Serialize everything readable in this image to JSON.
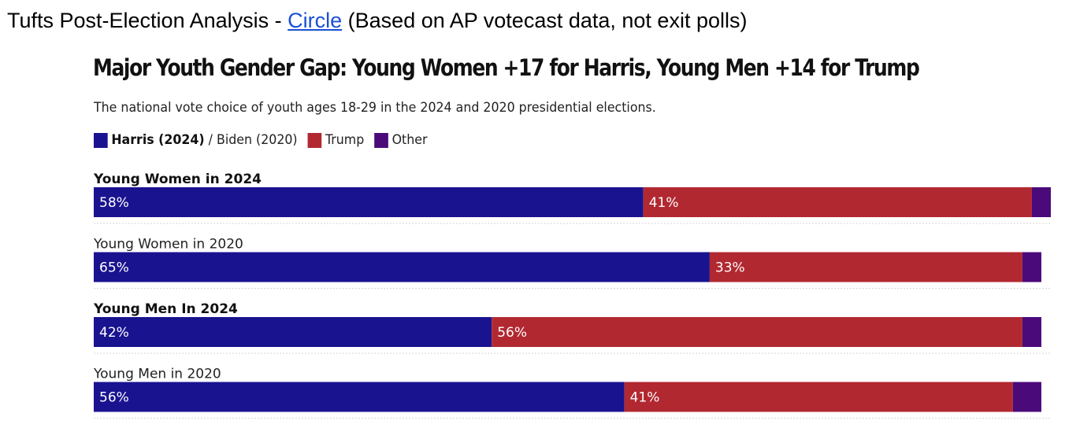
{
  "header": {
    "prefix": "Tufts Post-Election Analysis - ",
    "link_text": "Circle",
    "suffix": " (Based on AP votecast data, not exit polls)"
  },
  "legend": {
    "harris_label": "Harris (2024)",
    "biden_label": " / Biden (2020)",
    "trump_label": "Trump",
    "other_label": "Other"
  },
  "colors": {
    "harris": "#1a1390",
    "trump": "#b22831",
    "other": "#4b0a7a",
    "link": "#1a4fd6"
  },
  "chart_data": {
    "type": "bar",
    "stacked": true,
    "orientation": "horizontal",
    "title": "Major Youth Gender Gap: Young Women +17 for Harris, Young Men +14 for Trump",
    "subtitle": "The national vote choice of youth ages 18-29 in the 2024 and 2020 presidential elections.",
    "categories": [
      "Young Women in 2024",
      "Young Women in 2020",
      "Young Men In 2024",
      "Young Men in 2020"
    ],
    "category_bold": [
      true,
      false,
      true,
      false
    ],
    "series": [
      {
        "name": "Harris (2024) / Biden (2020)",
        "values": [
          58,
          65,
          42,
          56
        ]
      },
      {
        "name": "Trump",
        "values": [
          41,
          33,
          56,
          41
        ]
      },
      {
        "name": "Other",
        "values": [
          2,
          2,
          2,
          3
        ]
      }
    ],
    "data_labels": [
      [
        "58%",
        "41%"
      ],
      [
        "65%",
        "33%"
      ],
      [
        "42%",
        "56%"
      ],
      [
        "56%",
        "41%"
      ]
    ],
    "xlim": [
      0,
      101
    ],
    "legend_position": "top-left",
    "grid": false
  }
}
